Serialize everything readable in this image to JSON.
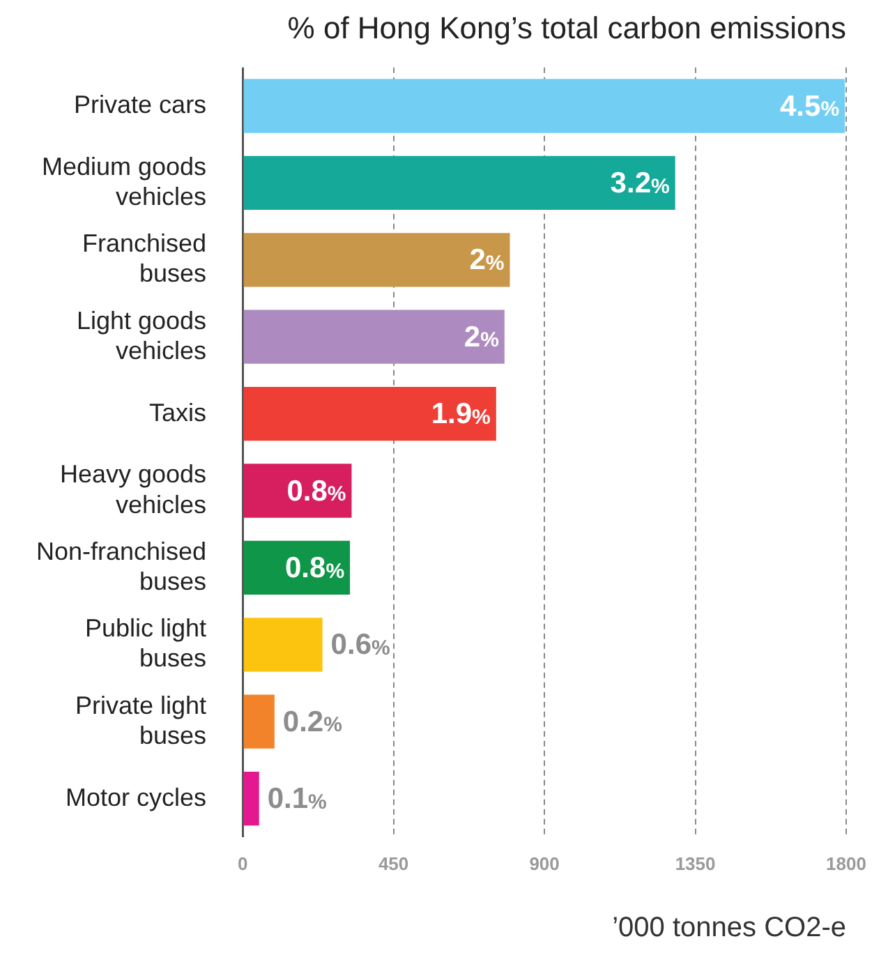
{
  "chart_data": {
    "type": "bar",
    "orientation": "horizontal",
    "title": "% of Hong Kong’s total carbon emissions",
    "xlabel": "’000 tonnes CO2-e",
    "categories": [
      "Private cars",
      "Medium goods vehicles",
      "Franchised buses",
      "Light goods vehicles",
      "Taxis",
      "Heavy goods vehicles",
      "Non-franchised buses",
      "Public light buses",
      "Private light buses",
      "Motor cycles"
    ],
    "values": [
      1796,
      1290,
      797,
      781,
      756,
      325,
      320,
      238,
      95,
      49
    ],
    "colors": [
      "#72cff3",
      "#15a99a",
      "#c9974a",
      "#ad8bc1",
      "#ee3e36",
      "#d71f5f",
      "#0f9648",
      "#fcc30f",
      "#f3832a",
      "#e5198f"
    ],
    "annotations": [
      {
        "text": "4.5%",
        "x": 1796,
        "y": "Private cars"
      },
      {
        "text": "3.2%",
        "x": 1290,
        "y": "Medium goods vehicles"
      },
      {
        "text": "2%",
        "x": 797,
        "y": "Franchised buses"
      },
      {
        "text": "2%",
        "x": 781,
        "y": "Light goods vehicles"
      },
      {
        "text": "1.9%",
        "x": 756,
        "y": "Taxis"
      },
      {
        "text": "0.8%",
        "x": 325,
        "y": "Heavy goods vehicles"
      },
      {
        "text": "0.8%",
        "x": 320,
        "y": "Non-franchised buses"
      },
      {
        "text": "0.6%",
        "x": 238,
        "y": "Public light buses"
      },
      {
        "text": "0.2%",
        "x": 95,
        "y": "Private light buses"
      },
      {
        "text": "0.1%",
        "x": 49,
        "y": "Motor cycles"
      }
    ],
    "xlim": [
      0,
      1800
    ],
    "xticks": [
      0,
      450,
      900,
      1350,
      1800
    ],
    "grid": "x",
    "legend": false
  }
}
